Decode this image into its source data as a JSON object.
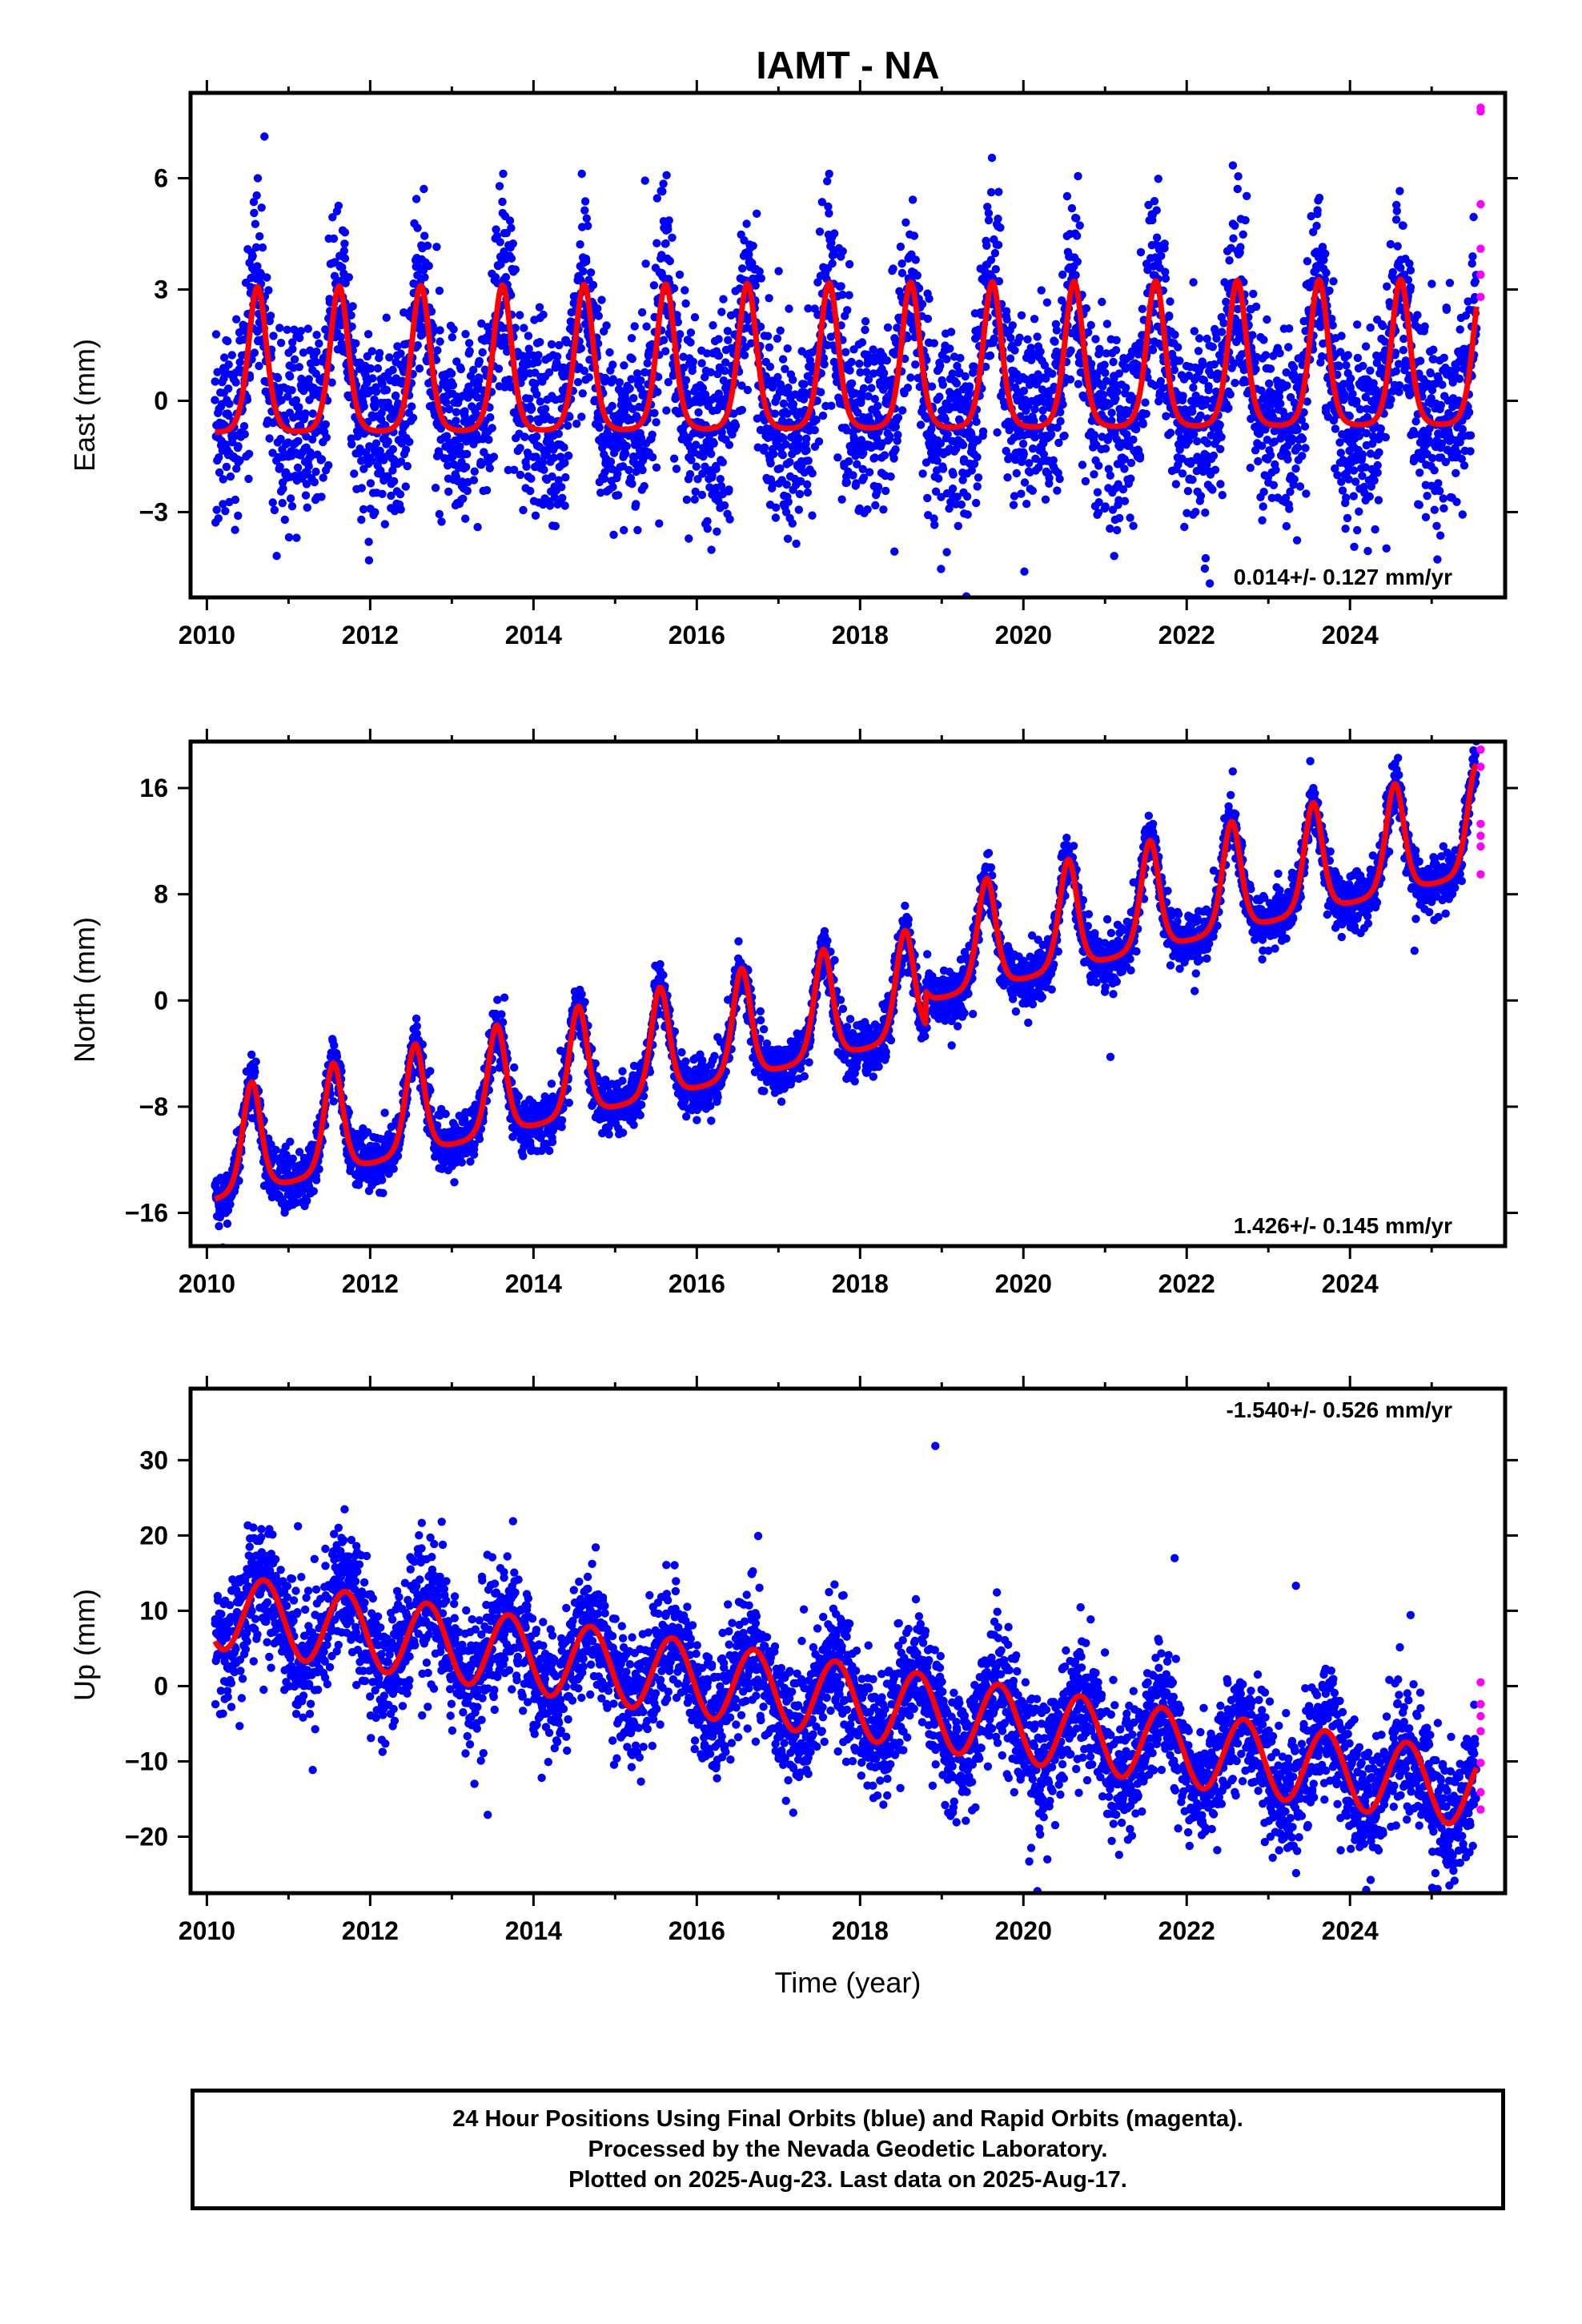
{
  "title": "IAMT - NA",
  "colors": {
    "final_orbits": "#0000ff",
    "rapid_orbits": "#ff00ff",
    "model_fit": "#ff0000",
    "axes": "#000000"
  },
  "chart_data": [
    {
      "type": "scatter",
      "title": "IAMT - NA",
      "ylabel": "East (mm)",
      "xlabel": "",
      "xlim": [
        2009.8,
        2025.9
      ],
      "ylim": [
        -5.3,
        8.3
      ],
      "x_ticks": [
        2010,
        2012,
        2014,
        2016,
        2018,
        2020,
        2022,
        2024
      ],
      "x_tick_labels": [
        "2010",
        "2012",
        "2014",
        "2016",
        "2018",
        "2020",
        "2022",
        "2024"
      ],
      "y_ticks": [
        -3,
        0,
        3,
        6
      ],
      "y_tick_labels": [
        "−3",
        "0",
        "3",
        "6"
      ],
      "rate_text": "0.014+/- 0.127 mm/yr",
      "rate_position": "bottom-right",
      "series": [
        {
          "role": "final",
          "x_start": 2010.1,
          "x_end": 2025.55,
          "trend_mm_per_yr": 0.014,
          "offset": 0.1,
          "seasonal_amp": 2.2,
          "seasonal_shape": "peaked",
          "peak_phase": 0.62,
          "noise_sd": 1.25,
          "samples_per_year": 300
        },
        {
          "role": "rapid",
          "x": [
            2025.6,
            2025.6,
            2025.6,
            2025.6,
            2025.6,
            2025.6
          ],
          "y": [
            7.9,
            7.8,
            5.3,
            4.1,
            3.4,
            2.8
          ]
        },
        {
          "role": "model",
          "note": "model curve"
        }
      ]
    },
    {
      "type": "scatter",
      "ylabel": "North (mm)",
      "xlabel": "",
      "xlim": [
        2009.8,
        2025.9
      ],
      "ylim": [
        -18.5,
        19.5
      ],
      "x_ticks": [
        2010,
        2012,
        2014,
        2016,
        2018,
        2020,
        2022,
        2024
      ],
      "x_tick_labels": [
        "2010",
        "2012",
        "2014",
        "2016",
        "2018",
        "2020",
        "2022",
        "2024"
      ],
      "y_ticks": [
        -16,
        -8,
        0,
        8,
        16
      ],
      "y_tick_labels": [
        "−16",
        "−8",
        "0",
        "8",
        "16"
      ],
      "rate_text": "1.426+/- 0.145 mm/yr",
      "rate_position": "bottom-right",
      "series": [
        {
          "role": "final",
          "x_start": 2010.1,
          "x_end": 2025.55,
          "trend_mm_per_yr": 1.426,
          "offset": -13.0,
          "offset_step_year": 2018.8,
          "offset_step_mm": 2.5,
          "seasonal_amp": 4.6,
          "seasonal_shape": "peaked",
          "peak_phase": 0.55,
          "noise_sd": 1.0,
          "samples_per_year": 300
        },
        {
          "role": "rapid",
          "x": [
            2025.6,
            2025.6,
            2025.6,
            2025.6,
            2025.6,
            2025.6
          ],
          "y": [
            18.9,
            17.6,
            13.3,
            12.4,
            11.6,
            9.5
          ]
        },
        {
          "role": "model",
          "note": "model curve"
        }
      ]
    },
    {
      "type": "scatter",
      "ylabel": "Up (mm)",
      "xlabel": "Time (year)",
      "xlim": [
        2009.8,
        2025.9
      ],
      "ylim": [
        -27.5,
        39.5
      ],
      "x_ticks": [
        2010,
        2012,
        2014,
        2016,
        2018,
        2020,
        2022,
        2024
      ],
      "x_tick_labels": [
        "2010",
        "2012",
        "2014",
        "2016",
        "2018",
        "2020",
        "2022",
        "2024"
      ],
      "y_ticks": [
        -20,
        -10,
        0,
        10,
        20,
        30
      ],
      "y_tick_labels": [
        "−20",
        "−10",
        "0",
        "10",
        "20",
        "30"
      ],
      "rate_text": "-1.540+/- 0.526 mm/yr",
      "rate_position": "top-right",
      "series": [
        {
          "role": "final",
          "x_start": 2010.1,
          "x_end": 2025.55,
          "trend_mm_per_yr": -1.54,
          "offset": 10.0,
          "seasonal_amp": 5.0,
          "seasonal_shape": "sine",
          "peak_phase": 0.7,
          "noise_sd": 4.2,
          "samples_per_year": 300
        },
        {
          "role": "rapid",
          "x": [
            2025.6,
            2025.6,
            2025.6,
            2025.6,
            2025.6,
            2025.6,
            2025.6
          ],
          "y": [
            0.5,
            -2.4,
            -4.0,
            -6.0,
            -10.2,
            -14.1,
            -16.4
          ]
        },
        {
          "role": "model",
          "note": "model curve"
        }
      ]
    }
  ],
  "caption": {
    "line1": "24 Hour Positions Using Final Orbits (blue) and Rapid Orbits (magenta).",
    "line2": "Processed by the Nevada Geodetic Laboratory.",
    "line3": "Plotted on 2025-Aug-23. Last data on 2025-Aug-17."
  }
}
